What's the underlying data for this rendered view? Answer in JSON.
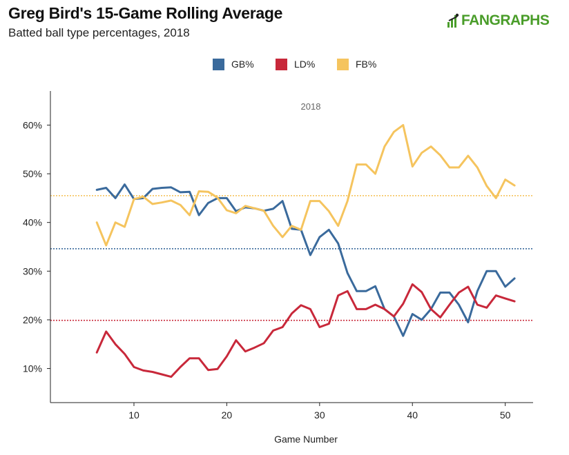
{
  "header": {
    "title": "Greg Bird's 15-Game Rolling Average",
    "subtitle": "Batted ball type percentages, 2018",
    "brand": "FANGRAPHS"
  },
  "colors": {
    "gb": "#3a6a9c",
    "ld": "#c8283a",
    "fb": "#f5c45e",
    "brand": "#4a9d2a",
    "axis": "#222222"
  },
  "chart_data": {
    "type": "line",
    "title": "Greg Bird's 15-Game Rolling Average",
    "subtitle": "Batted ball type percentages, 2018",
    "annotation": "2018",
    "xlabel": "Game Number",
    "ylabel": "",
    "xlim": [
      1,
      53
    ],
    "ylim": [
      3,
      67
    ],
    "xticks": [
      10,
      20,
      30,
      40,
      50
    ],
    "xtick_labels": [
      "10",
      "20",
      "30",
      "40",
      "50"
    ],
    "yticks": [
      10,
      20,
      30,
      40,
      50,
      60
    ],
    "ytick_labels": [
      "10%",
      "20%",
      "30%",
      "40%",
      "50%",
      "60%"
    ],
    "legend_position": "top-center",
    "x": [
      6,
      7,
      8,
      9,
      10,
      11,
      12,
      13,
      14,
      15,
      16,
      17,
      18,
      19,
      20,
      21,
      22,
      23,
      24,
      25,
      26,
      27,
      28,
      29,
      30,
      31,
      32,
      33,
      34,
      35,
      36,
      37,
      38,
      39,
      40,
      41,
      42,
      43,
      44,
      45,
      46,
      47,
      48,
      49,
      50,
      51
    ],
    "series": [
      {
        "name": "GB%",
        "key": "gb",
        "values": [
          46.7,
          47.1,
          45.0,
          47.8,
          44.8,
          45.0,
          46.9,
          47.1,
          47.2,
          46.2,
          46.3,
          41.5,
          44.0,
          45.0,
          45.0,
          42.3,
          43.1,
          42.9,
          42.4,
          42.8,
          44.4,
          38.7,
          38.5,
          33.3,
          37.0,
          38.5,
          35.7,
          29.6,
          25.9,
          25.9,
          26.9,
          22.2,
          20.7,
          16.7,
          21.2,
          20.0,
          22.2,
          25.6,
          25.6,
          23.1,
          19.5,
          25.9,
          30.0,
          30.0,
          26.8,
          28.5
        ]
      },
      {
        "name": "LD%",
        "key": "ld",
        "values": [
          13.3,
          17.6,
          15.0,
          13.0,
          10.3,
          9.6,
          9.3,
          8.8,
          8.3,
          10.3,
          12.1,
          12.1,
          9.7,
          9.9,
          12.5,
          15.8,
          13.5,
          14.3,
          15.2,
          17.8,
          18.5,
          21.3,
          23.0,
          22.2,
          18.5,
          19.2,
          25.0,
          25.9,
          22.2,
          22.2,
          23.1,
          22.2,
          20.7,
          23.3,
          27.3,
          25.7,
          22.2,
          20.5,
          23.1,
          25.6,
          26.8,
          23.1,
          22.5,
          25.0,
          24.4,
          23.8
        ]
      },
      {
        "name": "FB%",
        "key": "fb",
        "values": [
          40.0,
          35.3,
          40.0,
          39.1,
          44.8,
          45.3,
          43.8,
          44.1,
          44.5,
          43.6,
          41.5,
          46.4,
          46.3,
          45.1,
          42.5,
          41.9,
          43.4,
          42.9,
          42.4,
          39.3,
          37.0,
          39.3,
          38.5,
          44.4,
          44.4,
          42.3,
          39.3,
          44.4,
          51.9,
          51.9,
          50.0,
          55.6,
          58.6,
          60.0,
          51.5,
          54.3,
          55.6,
          53.8,
          51.3,
          51.3,
          53.7,
          51.3,
          47.5,
          45.0,
          48.8,
          47.6
        ]
      }
    ],
    "reference_lines": [
      {
        "key": "fb",
        "value": 45.5
      },
      {
        "key": "gb",
        "value": 34.6
      },
      {
        "key": "ld",
        "value": 19.9
      }
    ]
  }
}
